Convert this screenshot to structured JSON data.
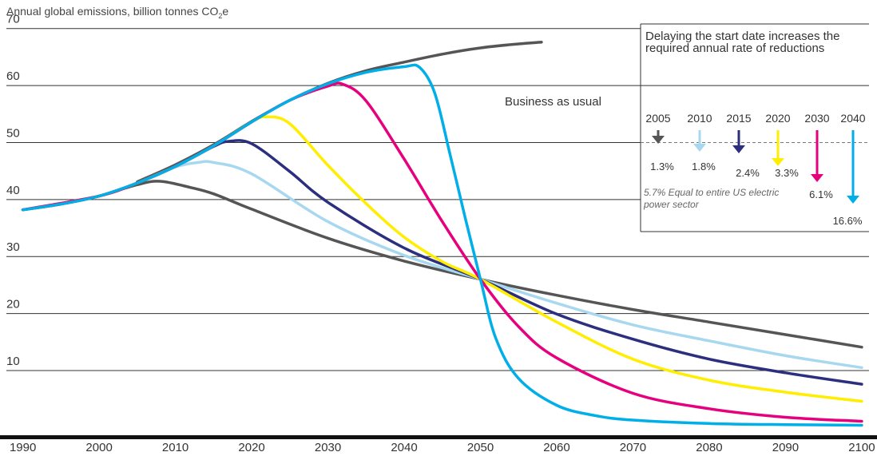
{
  "header": {
    "title_text": "Annual global emissions, billion tonnes CO",
    "title_sub": "2",
    "title_end": "e"
  },
  "inset": {
    "title": "Delaying the start date increases the required annual rate of reductions",
    "note": "5.7% Equal to entire US electric power sector",
    "reference_value": 50,
    "items": [
      {
        "year": "2005",
        "rate": "1.3%",
        "color": "#555555"
      },
      {
        "year": "2010",
        "rate": "1.8%",
        "color": "#a8d8ef"
      },
      {
        "year": "2015",
        "rate": "2.4%",
        "color": "#2b2f7e"
      },
      {
        "year": "2020",
        "rate": "3.3%",
        "color": "#ffee00"
      },
      {
        "year": "2030",
        "rate": "6.1%",
        "color": "#e6007e"
      },
      {
        "year": "2040",
        "rate": "16.6%",
        "color": "#00aee8"
      }
    ]
  },
  "chart_data": {
    "type": "line",
    "title": "Annual global emissions, billion tonnes CO2e",
    "xlim": [
      1987,
      2102
    ],
    "ylim": [
      -5,
      75
    ],
    "x_ticks": [
      "1990",
      "2000",
      "2010",
      "2020",
      "2030",
      "2040",
      "2050",
      "2060",
      "2070",
      "2080",
      "2090",
      "2100"
    ],
    "y_ticks": [
      "10",
      "20",
      "30",
      "40",
      "50",
      "60",
      "70"
    ],
    "grid": true,
    "series": [
      {
        "name": "Business as usual",
        "color": "#555555",
        "x": [
          2005,
          2010,
          2015,
          2020,
          2025,
          2030,
          2035,
          2040,
          2045,
          2050,
          2055,
          2058
        ],
        "y": [
          43.1,
          46.1,
          49.6,
          53.7,
          57.4,
          60.4,
          62.6,
          64.1,
          65.5,
          66.6,
          67.3,
          67.6
        ]
      },
      {
        "name": "",
        "color": "#555555",
        "x": [
          1990,
          1995,
          2000,
          2005,
          2008,
          2012,
          2015,
          2020,
          2030,
          2040,
          2050,
          2060,
          2070,
          2080,
          2090,
          2100
        ],
        "y": [
          38.2,
          39.2,
          40.6,
          42.6,
          43.2,
          42.1,
          41.0,
          38.3,
          33.2,
          29.2,
          26.0,
          23.2,
          20.7,
          18.5,
          16.3,
          14.1
        ]
      },
      {
        "name": "",
        "color": "#a8d8ef",
        "x": [
          1990,
          1995,
          2000,
          2005,
          2010,
          2013,
          2015,
          2020,
          2030,
          2040,
          2050,
          2060,
          2070,
          2080,
          2090,
          2100
        ],
        "y": [
          38.2,
          39.2,
          40.6,
          42.9,
          45.7,
          46.5,
          46.5,
          44.5,
          36.1,
          30.2,
          26.0,
          21.8,
          18.0,
          15.2,
          12.6,
          10.5
        ]
      },
      {
        "name": "",
        "color": "#2b2f7e",
        "x": [
          1990,
          1995,
          2000,
          2005,
          2010,
          2015,
          2017,
          2020,
          2025,
          2030,
          2040,
          2050,
          2060,
          2070,
          2080,
          2090,
          2100
        ],
        "y": [
          38.2,
          39.2,
          40.6,
          42.9,
          45.8,
          49.3,
          50.2,
          49.8,
          44.9,
          39.5,
          31.5,
          26.0,
          19.9,
          15.5,
          12.0,
          9.6,
          7.6
        ]
      },
      {
        "name": "",
        "color": "#ffee00",
        "x": [
          1990,
          2000,
          2005,
          2010,
          2015,
          2020,
          2022,
          2025,
          2030,
          2035,
          2040,
          2045,
          2050,
          2060,
          2070,
          2080,
          2090,
          2100
        ],
        "y": [
          38.2,
          40.6,
          42.9,
          45.8,
          49.4,
          53.6,
          54.5,
          53.3,
          46.0,
          39.3,
          33.4,
          29.1,
          26.0,
          18.5,
          12.0,
          8.3,
          6.2,
          4.6
        ]
      },
      {
        "name": "",
        "color": "#e6007e",
        "x": [
          1990,
          2000,
          2005,
          2010,
          2015,
          2020,
          2025,
          2030,
          2032,
          2035,
          2040,
          2045,
          2050,
          2055,
          2060,
          2070,
          2080,
          2090,
          2100
        ],
        "y": [
          38.2,
          40.6,
          42.9,
          45.8,
          49.4,
          53.6,
          57.4,
          59.9,
          60.2,
          57.3,
          47.1,
          36.1,
          26.0,
          17.7,
          12.2,
          6.0,
          3.3,
          1.8,
          1.1
        ]
      },
      {
        "name": "",
        "color": "#00aee8",
        "x": [
          1990,
          1995,
          2000,
          2005,
          2010,
          2015,
          2020,
          2025,
          2030,
          2035,
          2040,
          2042,
          2044,
          2046,
          2048,
          2050,
          2052,
          2055,
          2060,
          2065,
          2070,
          2080,
          2090,
          2100
        ],
        "y": [
          38.2,
          39.2,
          40.6,
          42.9,
          45.8,
          49.4,
          53.6,
          57.4,
          60.3,
          62.3,
          63.3,
          63.2,
          58.7,
          48.0,
          36.8,
          26.0,
          15.7,
          8.6,
          3.9,
          2.1,
          1.3,
          0.7,
          0.5,
          0.4
        ]
      }
    ]
  }
}
